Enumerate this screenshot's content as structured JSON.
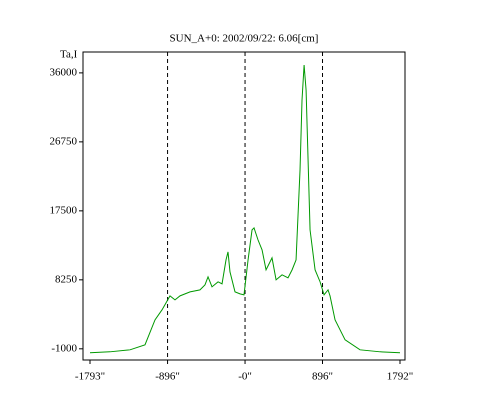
{
  "chart_data": {
    "type": "line",
    "title": "SUN_A+0: 2002/09/22: 6.06[cm]",
    "y_label": "Ta,I",
    "x": [
      -1793,
      -1562,
      -1330,
      -1157,
      -1041,
      -960,
      -868,
      -810,
      -752,
      -636,
      -521,
      -463,
      -428,
      -382,
      -312,
      -266,
      -220,
      -197,
      -174,
      -116,
      -58,
      -12,
      35,
      81,
      104,
      150,
      197,
      243,
      289,
      312,
      359,
      428,
      497,
      544,
      590,
      636,
      659,
      683,
      706,
      752,
      810,
      868,
      914,
      960,
      983,
      1041,
      1157,
      1330,
      1562,
      1792
    ],
    "series": [
      {
        "name": "Ta,I",
        "color": "#009900",
        "values": [
          -1536,
          -1402,
          -1134,
          -464,
          2886,
          4226,
          6102,
          5566,
          6102,
          6638,
          6906,
          7576,
          8648,
          7308,
          7978,
          7710,
          10926,
          11998,
          9318,
          6638,
          6370,
          6236,
          10926,
          14946,
          15214,
          13606,
          12266,
          9586,
          10658,
          11194,
          8246,
          8916,
          8514,
          9586,
          10926,
          22986,
          32366,
          37056,
          33706,
          14946,
          9586,
          7978,
          6236,
          6906,
          6102,
          2886,
          206,
          -1134,
          -1402,
          -1536
        ]
      }
    ],
    "xlim": [
      -1874,
      1850
    ],
    "ylim": [
      -2500,
      38800
    ],
    "xticks": [
      {
        "value": -1793,
        "label": "-1793\""
      },
      {
        "value": -896,
        "label": "-896\""
      },
      {
        "value": 0,
        "label": "-0\""
      },
      {
        "value": 896,
        "label": "896\""
      },
      {
        "value": 1792,
        "label": "1792\""
      }
    ],
    "yticks": [
      -1000,
      8250,
      17500,
      26750,
      36000
    ],
    "grid": "dashed-inner-x"
  }
}
